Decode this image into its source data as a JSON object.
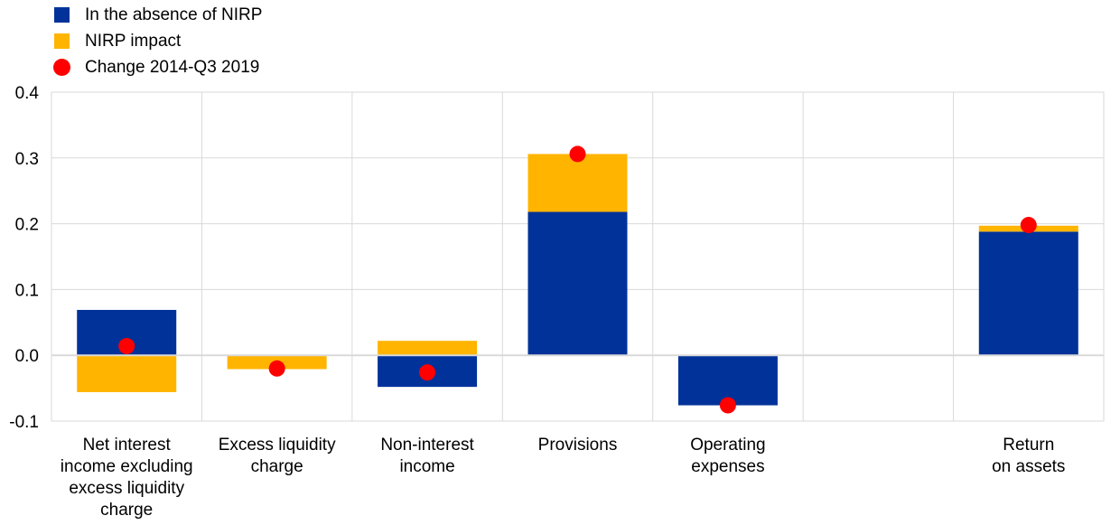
{
  "chart_data": {
    "type": "bar",
    "stacked": true,
    "categories": [
      [
        "Net interest",
        "income excluding",
        "excess liquidity",
        "charge"
      ],
      [
        "Excess liquidity",
        "charge"
      ],
      [
        "Non-interest",
        "income"
      ],
      [
        "Provisions"
      ],
      [
        "Operating",
        "expenses"
      ],
      [],
      [
        "Return",
        "on assets"
      ]
    ],
    "series": [
      {
        "name": "In the absence of NIRP",
        "color": "#003299",
        "values": [
          0.069,
          0.0,
          -0.048,
          0.218,
          -0.076,
          null,
          0.188
        ]
      },
      {
        "name": "NIRP impact",
        "color": "#FFB400",
        "values": [
          -0.056,
          -0.021,
          0.022,
          0.088,
          0.0,
          null,
          0.009
        ]
      }
    ],
    "markers": {
      "name": "Change 2014-Q3 2019",
      "color": "#FF0000",
      "values": [
        0.014,
        -0.02,
        -0.026,
        0.306,
        -0.076,
        null,
        0.198
      ]
    },
    "ylim": [
      -0.1,
      0.4
    ],
    "yticks": [
      "0.4",
      "0.3",
      "0.2",
      "0.1",
      "0.0",
      "-0.1"
    ],
    "ytick_values": [
      0.4,
      0.3,
      0.2,
      0.1,
      0.0,
      -0.1
    ],
    "grid": true,
    "legend_position": "top-left",
    "xlabel": "",
    "ylabel": ""
  },
  "legend": {
    "item1": "In the absence of NIRP",
    "item2": "NIRP impact",
    "item3": "Change 2014-Q3 2019"
  }
}
